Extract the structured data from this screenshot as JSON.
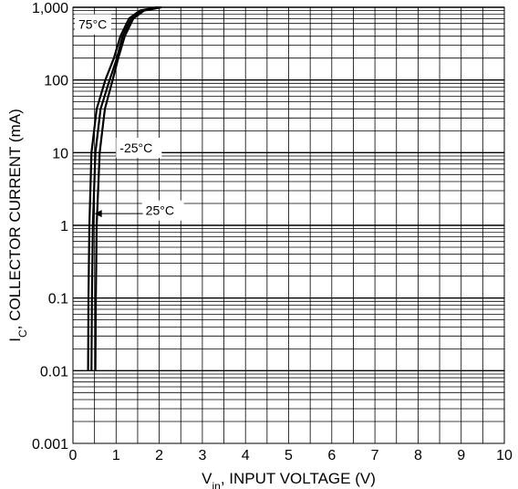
{
  "chart_data": {
    "type": "line",
    "xlabel": {
      "main": "V",
      "sub": "in",
      "rest": ", INPUT VOLTAGE (V)"
    },
    "ylabel": {
      "main": "I",
      "sub": "C",
      "rest": ", COLLECTOR CURRENT (mA)"
    },
    "xlim": [
      0,
      10
    ],
    "ylim": [
      0.001,
      1000
    ],
    "yscale": "log",
    "grid": true,
    "x_ticks": [
      "0",
      "1",
      "2",
      "3",
      "4",
      "5",
      "6",
      "7",
      "8",
      "9",
      "10"
    ],
    "y_ticks": [
      {
        "value": 0.001,
        "label": "0.001"
      },
      {
        "value": 0.01,
        "label": "0.01"
      },
      {
        "value": 0.1,
        "label": "0.1"
      },
      {
        "value": 1,
        "label": "1"
      },
      {
        "value": 10,
        "label": "10"
      },
      {
        "value": 100,
        "label": "100"
      },
      {
        "value": 1000,
        "label": "1,000"
      }
    ],
    "series": [
      {
        "name": "75°C",
        "points": [
          [
            0.35,
            0.01
          ],
          [
            0.36,
            0.1
          ],
          [
            0.38,
            1
          ],
          [
            0.43,
            10
          ],
          [
            0.55,
            40
          ],
          [
            0.75,
            100
          ],
          [
            0.95,
            200
          ],
          [
            1.1,
            400
          ],
          [
            1.3,
            700
          ],
          [
            1.55,
            900
          ],
          [
            1.95,
            1000
          ]
        ]
      },
      {
        "name": "25°C",
        "points": [
          [
            0.43,
            0.01
          ],
          [
            0.44,
            0.1
          ],
          [
            0.46,
            1
          ],
          [
            0.52,
            10
          ],
          [
            0.64,
            40
          ],
          [
            0.85,
            100
          ],
          [
            1.02,
            200
          ],
          [
            1.15,
            400
          ],
          [
            1.35,
            700
          ],
          [
            1.6,
            900
          ],
          [
            2.0,
            1000
          ]
        ]
      },
      {
        "name": "-25°C",
        "points": [
          [
            0.52,
            0.01
          ],
          [
            0.53,
            0.1
          ],
          [
            0.55,
            1
          ],
          [
            0.62,
            10
          ],
          [
            0.74,
            40
          ],
          [
            0.92,
            100
          ],
          [
            1.05,
            200
          ],
          [
            1.2,
            400
          ],
          [
            1.4,
            700
          ],
          [
            1.65,
            900
          ],
          [
            2.05,
            1000
          ]
        ]
      }
    ],
    "annotations": [
      {
        "text": "75°C",
        "target": "75°C"
      },
      {
        "text": "-25°C",
        "target": "-25°C"
      },
      {
        "text": "25°C",
        "target": "25°C"
      }
    ]
  }
}
